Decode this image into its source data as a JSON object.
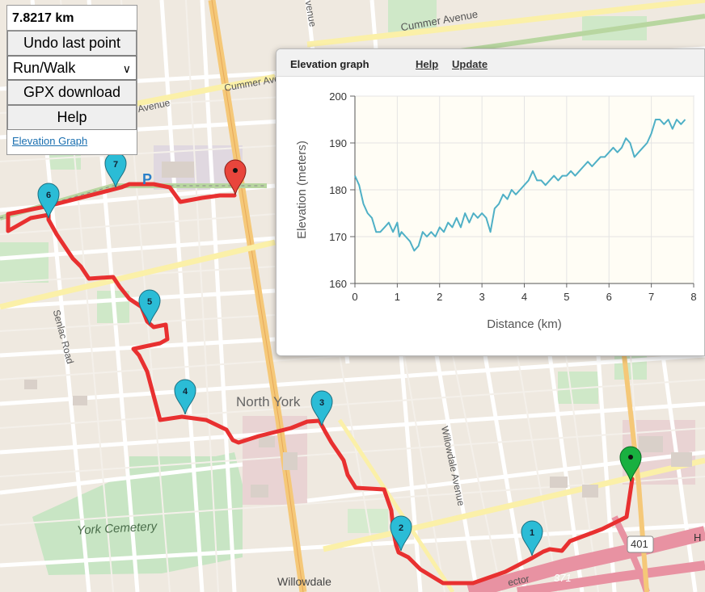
{
  "panel": {
    "distance": "7.8217 km",
    "undo_label": "Undo last point",
    "mode_selected": "Run/Walk",
    "gpx_label": "GPX download",
    "help_label": "Help",
    "elevation_link": "Elevation Graph"
  },
  "map_labels": {
    "cummer_avenue_1": "Cummer Avenue",
    "cummer_avenue_2": "Cummer Ave",
    "avenue_fragment": "Avenue",
    "avenue_top": "venue",
    "senlac_road": "Senlac Road",
    "north_york": "North York",
    "willowdale_avenue": "Willowdale Avenue",
    "york_cemetery": "York Cemetery",
    "willowdale": "Willowdale",
    "highway_401": "401",
    "highway_h": "H",
    "route_371": "371",
    "sector": "ector",
    "parking": "P"
  },
  "markers": [
    {
      "label": "1",
      "color": "#2bbcd6"
    },
    {
      "label": "2",
      "color": "#2bbcd6"
    },
    {
      "label": "3",
      "color": "#2bbcd6"
    },
    {
      "label": "4",
      "color": "#2bbcd6"
    },
    {
      "label": "5",
      "color": "#2bbcd6"
    },
    {
      "label": "6",
      "color": "#2bbcd6"
    },
    {
      "label": "7",
      "color": "#2bbcd6"
    }
  ],
  "start_marker_color": "#19b040",
  "end_marker_color": "#e8453c",
  "route_color": "#e83030",
  "elevation": {
    "title": "Elevation graph",
    "help_label": "Help",
    "update_label": "Update",
    "chart_data": {
      "type": "line",
      "xlabel": "Distance (km)",
      "ylabel": "Elevation (meters)",
      "xlim": [
        0,
        8
      ],
      "ylim": [
        160,
        200
      ],
      "x_ticks": [
        "0",
        "1",
        "2",
        "3",
        "4",
        "5",
        "6",
        "7",
        "8"
      ],
      "y_ticks": [
        "160",
        "170",
        "180",
        "190",
        "200"
      ],
      "line_color": "#4fb0c6",
      "plot_background": "#fffdf5",
      "grid": true,
      "x": [
        0,
        0.1,
        0.2,
        0.3,
        0.4,
        0.5,
        0.6,
        0.7,
        0.8,
        0.9,
        1.0,
        1.05,
        1.1,
        1.2,
        1.3,
        1.4,
        1.5,
        1.6,
        1.7,
        1.8,
        1.9,
        2.0,
        2.1,
        2.2,
        2.3,
        2.4,
        2.5,
        2.6,
        2.7,
        2.8,
        2.9,
        3.0,
        3.1,
        3.2,
        3.3,
        3.4,
        3.5,
        3.6,
        3.7,
        3.8,
        3.9,
        4.0,
        4.1,
        4.2,
        4.3,
        4.4,
        4.5,
        4.6,
        4.7,
        4.8,
        4.9,
        5.0,
        5.1,
        5.2,
        5.3,
        5.4,
        5.5,
        5.6,
        5.7,
        5.8,
        5.9,
        6.0,
        6.1,
        6.2,
        6.3,
        6.4,
        6.5,
        6.6,
        6.7,
        6.8,
        6.9,
        7.0,
        7.1,
        7.2,
        7.3,
        7.4,
        7.5,
        7.6,
        7.7,
        7.8
      ],
      "y": [
        183,
        181,
        177,
        175,
        174,
        171,
        171,
        172,
        173,
        171,
        173,
        170,
        171,
        170,
        169,
        167,
        168,
        171,
        170,
        171,
        170,
        172,
        171,
        173,
        172,
        174,
        172,
        175,
        173,
        175,
        174,
        175,
        174,
        171,
        176,
        177,
        179,
        178,
        180,
        179,
        180,
        181,
        182,
        184,
        182,
        182,
        181,
        182,
        183,
        182,
        183,
        183,
        184,
        183,
        184,
        185,
        186,
        185,
        186,
        187,
        187,
        188,
        189,
        188,
        189,
        191,
        190,
        187,
        188,
        189,
        190,
        192,
        195,
        195,
        194,
        195,
        193,
        195,
        194,
        195
      ]
    }
  }
}
